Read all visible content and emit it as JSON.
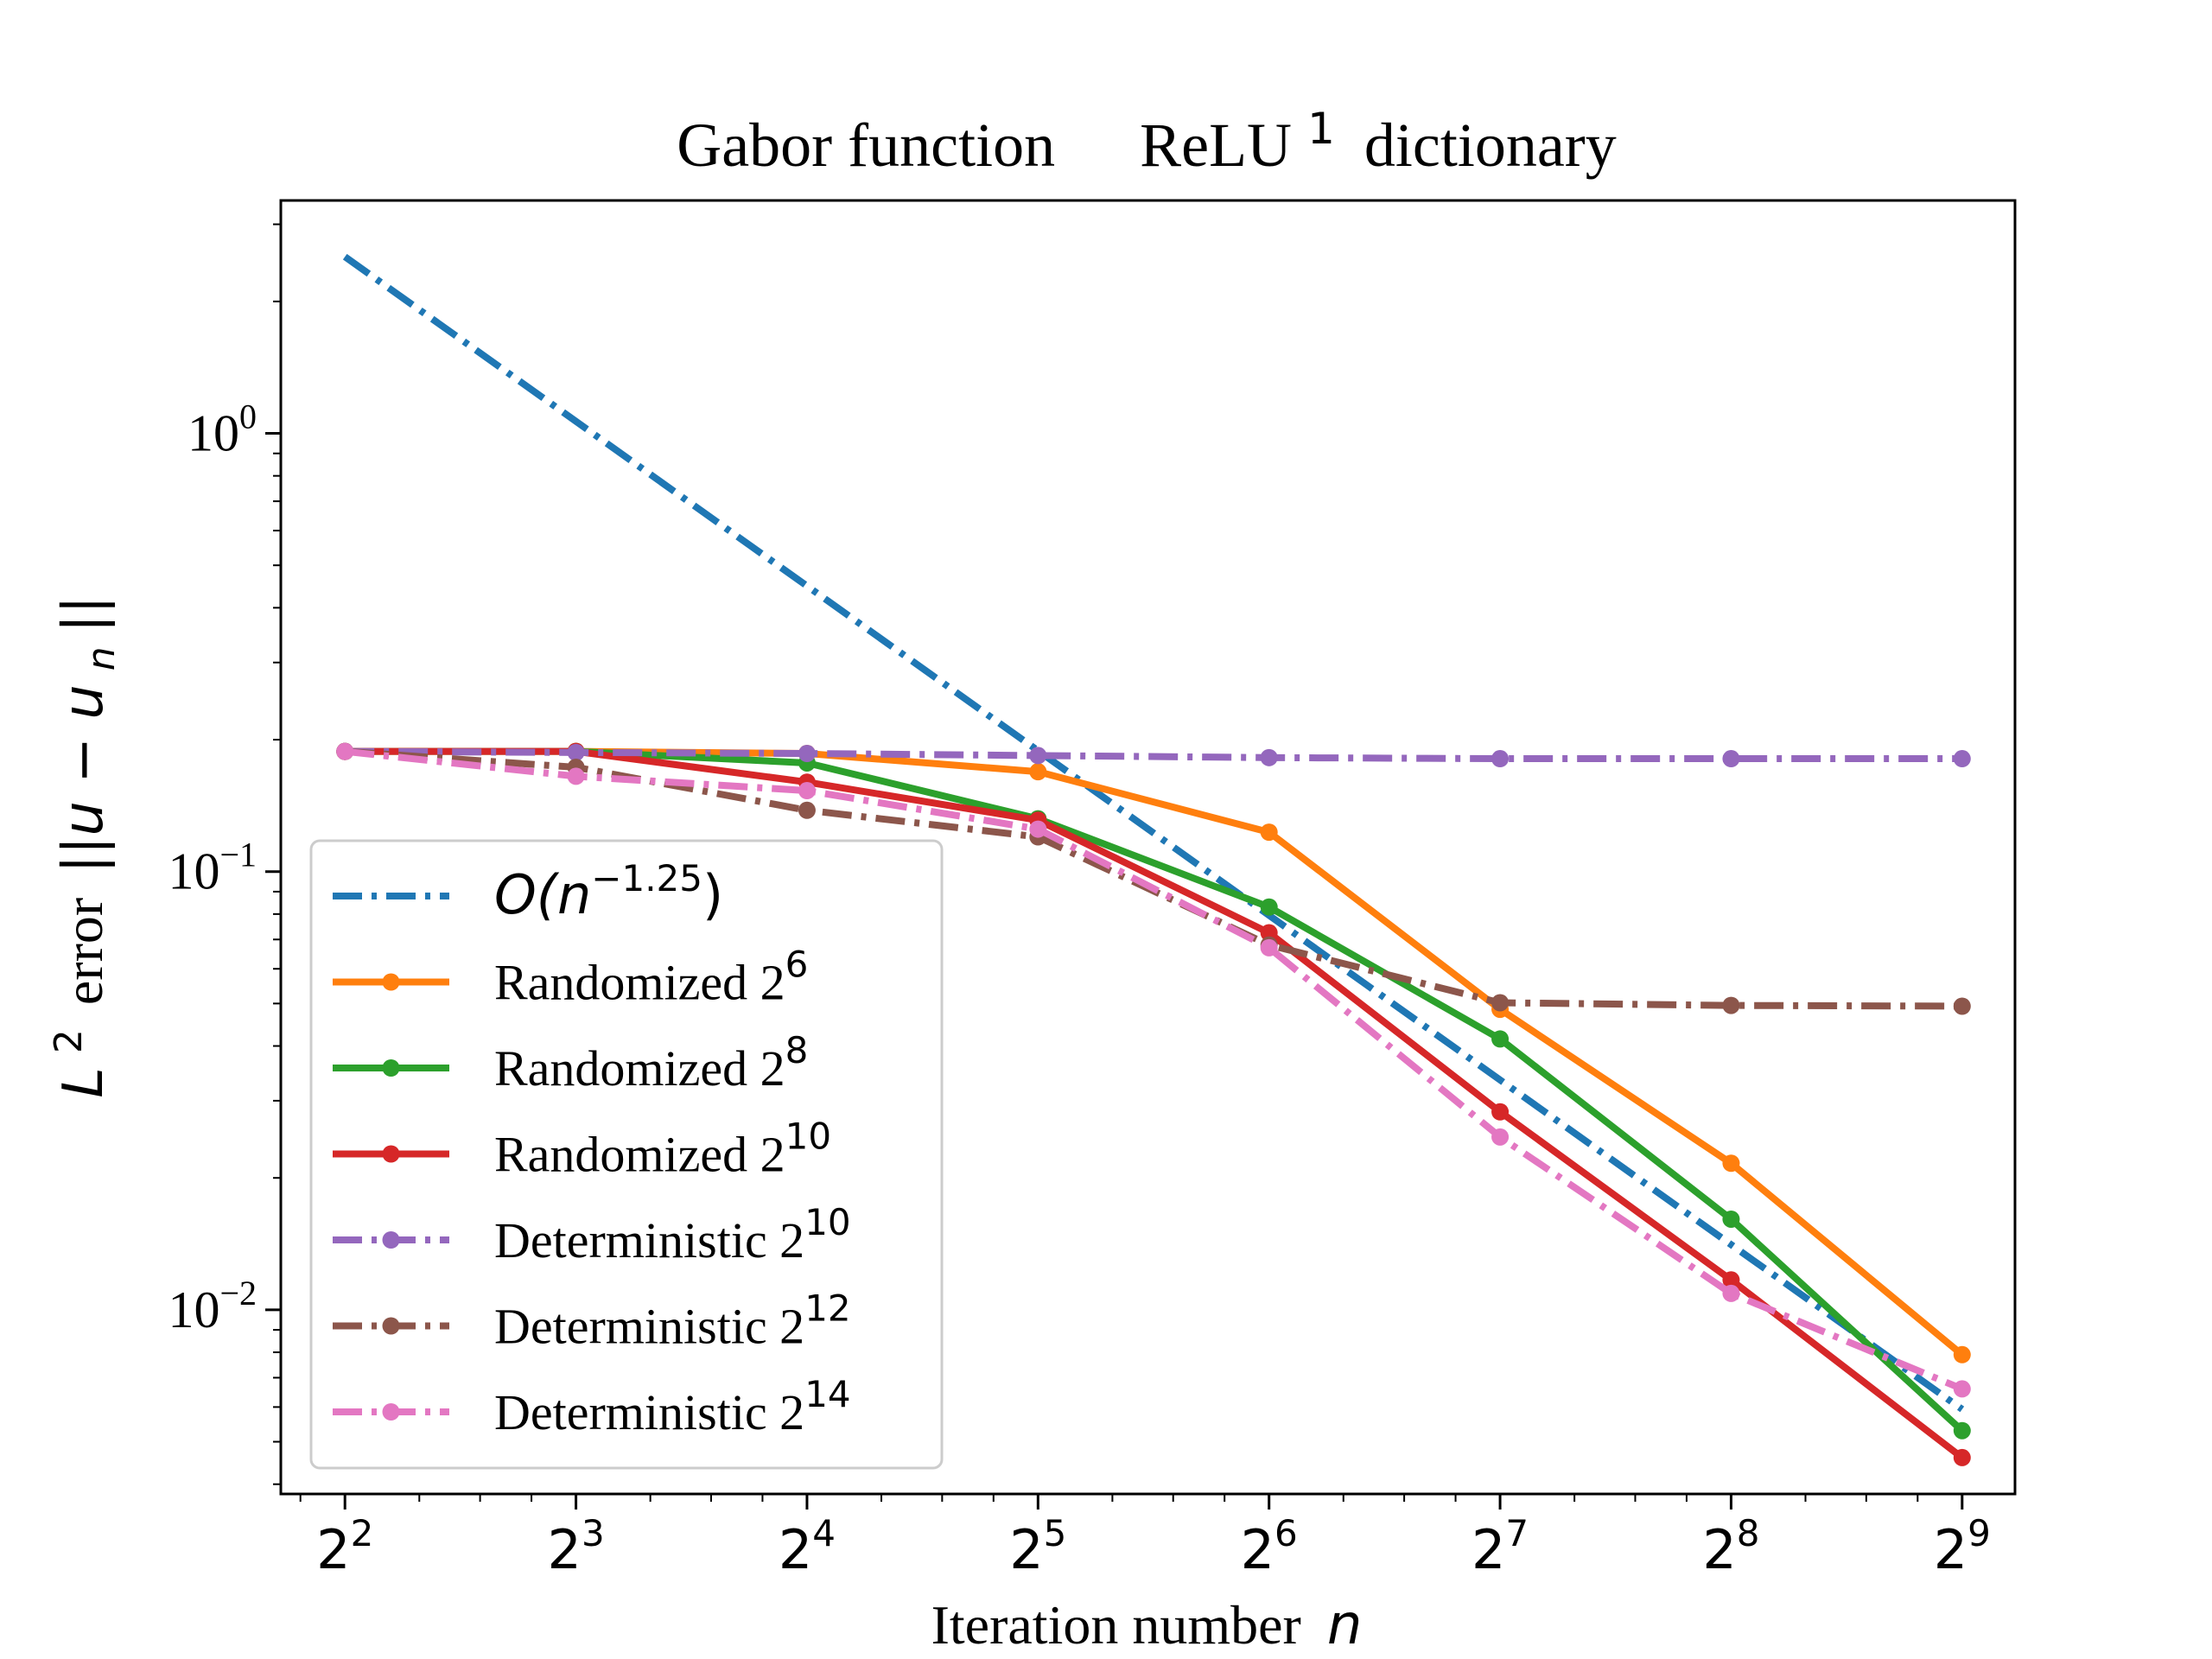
{
  "chart_data": {
    "type": "line",
    "title": {
      "left": "Gabor function",
      "right_base": "ReLU",
      "right_sup": "1",
      "right_tail": "dictionary"
    },
    "xlabel": {
      "text": "Iteration number",
      "var": "n"
    },
    "ylabel": {
      "base": "L",
      "sup": "2",
      "word": "error",
      "expr_pre": "||u − u",
      "expr_sub": "n",
      "expr_post": "||"
    },
    "x_scale": "log2",
    "y_scale": "log10",
    "x_ticks": [
      {
        "value": 4,
        "base": "2",
        "exp": "2"
      },
      {
        "value": 8,
        "base": "2",
        "exp": "3"
      },
      {
        "value": 16,
        "base": "2",
        "exp": "4"
      },
      {
        "value": 32,
        "base": "2",
        "exp": "5"
      },
      {
        "value": 64,
        "base": "2",
        "exp": "6"
      },
      {
        "value": 128,
        "base": "2",
        "exp": "7"
      },
      {
        "value": 256,
        "base": "2",
        "exp": "8"
      },
      {
        "value": 512,
        "base": "2",
        "exp": "9"
      }
    ],
    "y_ticks": [
      {
        "value": 1,
        "base": "10",
        "exp": "0"
      },
      {
        "value": 0.1,
        "base": "10",
        "exp": "−1"
      },
      {
        "value": 0.01,
        "base": "10",
        "exp": "−2"
      }
    ],
    "xlim": [
      3.3,
      600
    ],
    "ylim": [
      0.0038,
      3.4
    ],
    "grid": false,
    "legend_position": "lower-left",
    "x": [
      4,
      8,
      16,
      32,
      64,
      128,
      256,
      512
    ],
    "series": [
      {
        "legend": {
          "pre": "O(n",
          "sup": "−1.25",
          "post": ")"
        },
        "color": "#1f77b4",
        "style": "dashdot",
        "markers": false,
        "x": [
          4,
          512
        ],
        "values": [
          2.53,
          0.00593
        ]
      },
      {
        "legend": {
          "pre": "Randomized 2",
          "sup": "6",
          "post": ""
        },
        "color": "#ff7f0e",
        "style": "solid",
        "markers": true,
        "values": [
          0.188,
          0.188,
          0.186,
          0.169,
          0.123,
          0.0485,
          0.0216,
          0.0079
        ]
      },
      {
        "legend": {
          "pre": "Randomized 2",
          "sup": "8",
          "post": ""
        },
        "color": "#2ca02c",
        "style": "solid",
        "markers": true,
        "values": [
          0.188,
          0.188,
          0.177,
          0.132,
          0.083,
          0.0415,
          0.0161,
          0.0053
        ]
      },
      {
        "legend": {
          "pre": "Randomized 2",
          "sup": "10",
          "post": ""
        },
        "color": "#d62728",
        "style": "solid",
        "markers": true,
        "values": [
          0.188,
          0.188,
          0.16,
          0.131,
          0.0725,
          0.0283,
          0.0117,
          0.0046
        ]
      },
      {
        "legend": {
          "pre": "Deterministic 2",
          "sup": "10",
          "post": ""
        },
        "color": "#9467bd",
        "style": "dashdot",
        "markers": true,
        "values": [
          0.188,
          0.187,
          0.186,
          0.184,
          0.182,
          0.181,
          0.181,
          0.181
        ]
      },
      {
        "legend": {
          "pre": "Deterministic 2",
          "sup": "12",
          "post": ""
        },
        "color": "#8c564b",
        "style": "dashdot",
        "markers": true,
        "values": [
          0.188,
          0.173,
          0.138,
          0.12,
          0.068,
          0.0502,
          0.0495,
          0.0493
        ]
      },
      {
        "legend": {
          "pre": "Deterministic 2",
          "sup": "14",
          "post": ""
        },
        "color": "#e377c2",
        "style": "dashdot",
        "markers": true,
        "values": [
          0.188,
          0.165,
          0.153,
          0.125,
          0.067,
          0.0248,
          0.0109,
          0.0066
        ]
      }
    ]
  }
}
